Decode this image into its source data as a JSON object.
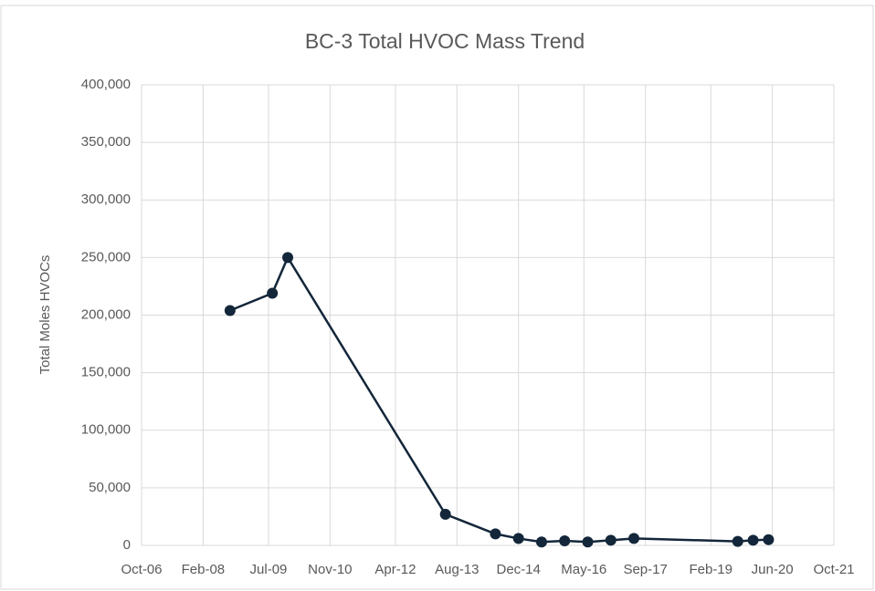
{
  "chart_data": {
    "type": "line",
    "title": "BC-3 Total HVOC Mass Trend",
    "y_label": "Total Moles HVOCs",
    "x": [
      "2008-09",
      "2009-08",
      "2009-12",
      "2013-05",
      "2014-06",
      "2014-12",
      "2015-06",
      "2015-12",
      "2016-06",
      "2016-12",
      "2017-06",
      "2019-09",
      "2020-01",
      "2020-05"
    ],
    "series": [
      {
        "name": "BC-3",
        "color": "#13263a",
        "values": [
          204000,
          219000,
          250000,
          27000,
          10000,
          6000,
          3000,
          4000,
          3000,
          4500,
          6000,
          3500,
          4500,
          5000
        ]
      }
    ],
    "xlim": [
      "2006-10",
      "2021-10"
    ],
    "xticks": [
      {
        "value": "2006-10",
        "label": "Oct-06"
      },
      {
        "value": "2008-02",
        "label": "Feb-08"
      },
      {
        "value": "2009-07",
        "label": "Jul-09"
      },
      {
        "value": "2010-11",
        "label": "Nov-10"
      },
      {
        "value": "2012-04",
        "label": "Apr-12"
      },
      {
        "value": "2013-08",
        "label": "Aug-13"
      },
      {
        "value": "2014-12",
        "label": "Dec-14"
      },
      {
        "value": "2016-05",
        "label": "May-16"
      },
      {
        "value": "2017-09",
        "label": "Sep-17"
      },
      {
        "value": "2019-02",
        "label": "Feb-19"
      },
      {
        "value": "2020-06",
        "label": "Jun-20"
      },
      {
        "value": "2021-10",
        "label": "Oct-21"
      }
    ],
    "ylim": [
      0,
      400000
    ],
    "yticks": [
      0,
      {
        "value": 50000,
        "label": "50,000"
      },
      {
        "value": 100000,
        "label": "100,000"
      },
      {
        "value": 150000,
        "label": "150,000"
      },
      {
        "value": 200000,
        "label": "200,000"
      },
      {
        "value": 250000,
        "label": "250,000"
      },
      {
        "value": 300000,
        "label": "300,000"
      },
      {
        "value": 350000,
        "label": "350,000"
      },
      {
        "value": 400000,
        "label": "400,000"
      }
    ],
    "grid": true
  }
}
